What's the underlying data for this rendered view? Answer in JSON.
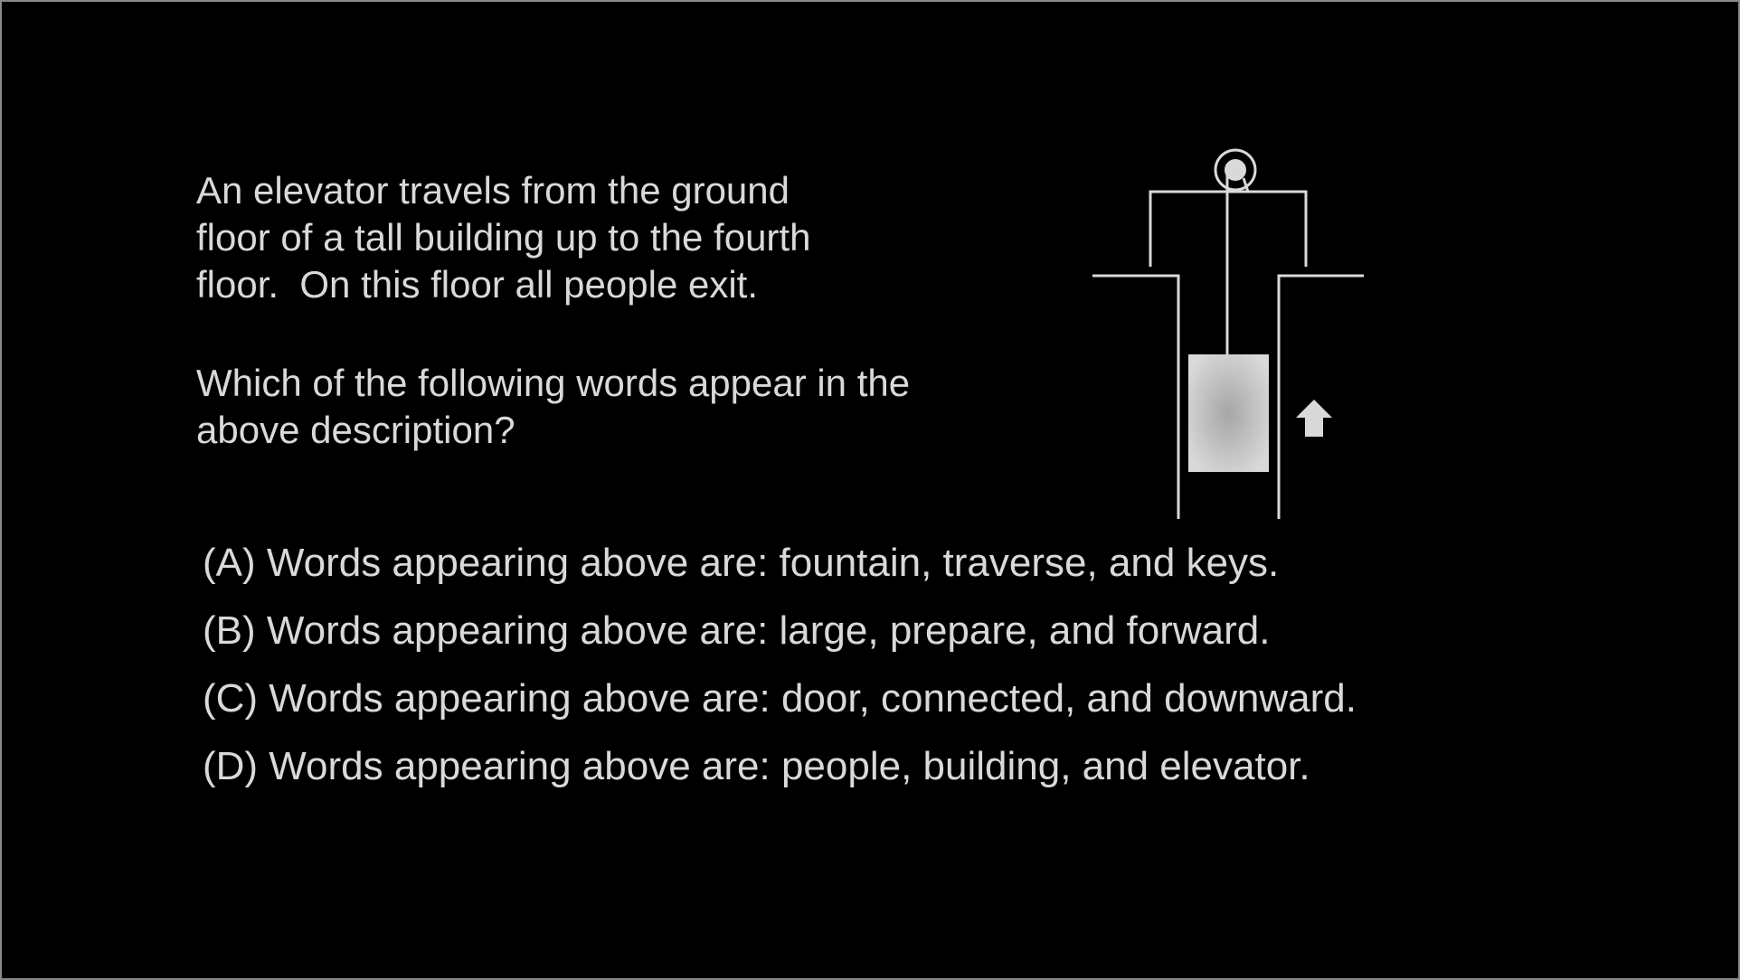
{
  "passage": {
    "lines": [
      "An elevator travels from the ground",
      "floor of a tall building up to the fourth",
      "floor.  On this floor all people exit."
    ]
  },
  "question": {
    "lines": [
      "Which of the following words appear in the",
      "above description?"
    ]
  },
  "options": [
    "(A) Words appearing above are: fountain, traverse, and keys.",
    "(B) Words appearing above are: large, prepare, and forward.",
    "(C) Words appearing above are: door, connected, and downward.",
    "(D) Words appearing above are: people, building, and elevator."
  ],
  "diagram": {
    "icon": "elevator-shaft-icon",
    "arrow_icon": "up-arrow-icon",
    "colors": {
      "line": "#d9d9d9",
      "car_center": "#a6a6a6",
      "car_edge": "#d9d9d9",
      "arrow": "#d9d9d9"
    }
  },
  "colors": {
    "background": "#000000",
    "text": "#d9d9d9"
  }
}
